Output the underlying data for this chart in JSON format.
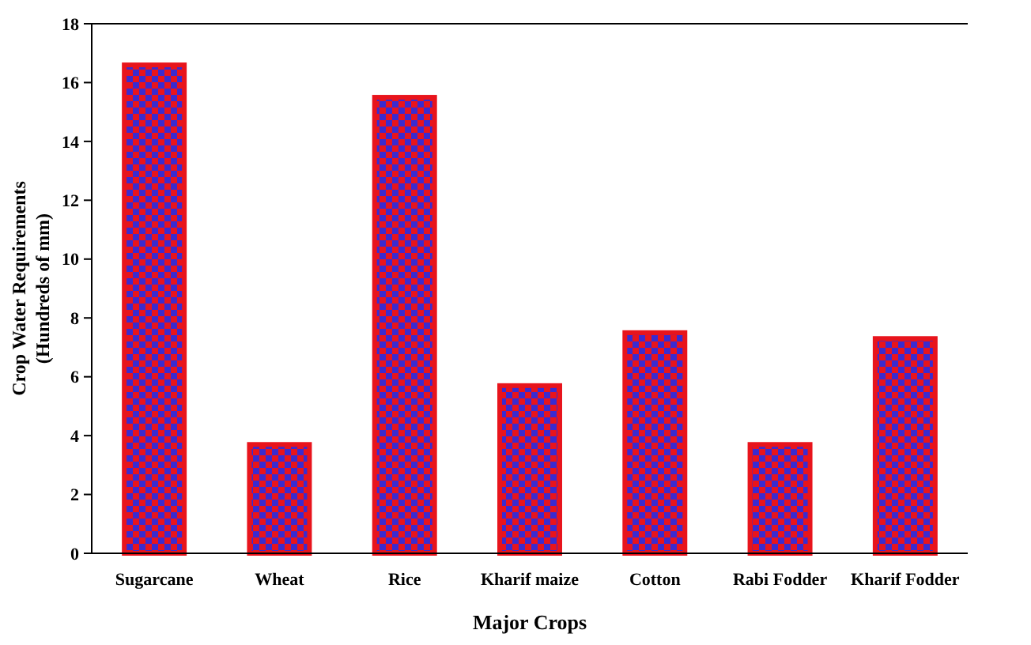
{
  "chart_data": {
    "type": "bar",
    "xlabel": "Major Crops",
    "ylabel": "Crop Water Requirements\n(Hundreds of mm)",
    "categories": [
      "Sugarcane",
      "Wheat",
      "Rice",
      "Kharif maize",
      "Cotton",
      "Rabi Fodder",
      "Kharif Fodder"
    ],
    "values": [
      16.6,
      3.7,
      15.5,
      5.7,
      7.5,
      3.7,
      7.3
    ],
    "color": "#e8141c",
    "ylim": [
      0,
      18
    ],
    "yticks": [
      0,
      2,
      4,
      6,
      8,
      10,
      12,
      14,
      16,
      18
    ],
    "grid": false
  }
}
